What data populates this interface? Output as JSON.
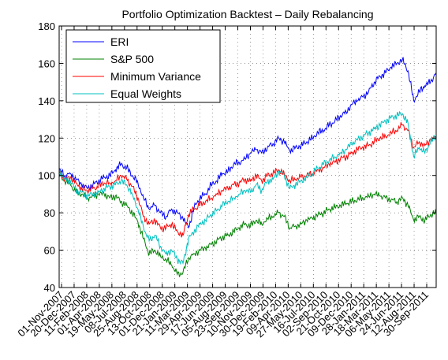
{
  "chart_data": {
    "type": "line",
    "title": "Portfolio Optimization Backtest – Daily Rebalancing",
    "xlabel": "",
    "ylabel": "",
    "ylim": [
      40,
      180
    ],
    "yticks": [
      40,
      60,
      80,
      100,
      120,
      140,
      160,
      180
    ],
    "grid": true,
    "legend_position": "top-left",
    "x_tick_labels": [
      "01-Nov-2007",
      "20-Dec-2007",
      "11-Feb-2008",
      "01-Apr-2008",
      "19-May-2008",
      "08-Jul-2008",
      "25-Aug-2008",
      "13-Oct-2008",
      "01-Dec-2008",
      "21-Jan-2009",
      "11-Mar-2009",
      "29-Apr-2009",
      "17-Jun-2009",
      "05-Aug-2009",
      "23-Sep-2009",
      "10-Nov-2009",
      "30-Dec-2009",
      "19-Feb-2010",
      "09-Apr-2010",
      "27-May-2010",
      "16-Jul-2010",
      "02-Sep-2010",
      "21-Oct-2010",
      "09-Dec-2010",
      "28-Jan-2011",
      "18-Mar-2011",
      "06-May-2011",
      "24-Jun-2011",
      "12-Aug-2011",
      "30-Sep-2011"
    ],
    "series": [
      {
        "name": "ERI",
        "color": "#0000ff",
        "values": [
          103,
          100,
          101,
          98,
          95,
          93,
          95,
          97,
          99,
          100,
          103,
          106,
          104,
          100,
          96,
          88,
          82,
          84,
          80,
          78,
          82,
          80,
          77,
          72,
          83,
          88,
          90,
          95,
          97,
          101,
          102,
          106,
          107,
          109,
          112,
          114,
          112,
          115,
          117,
          120,
          118,
          113,
          115,
          116,
          118,
          120,
          123,
          124,
          127,
          129,
          132,
          134,
          138,
          140,
          142,
          145,
          150,
          153,
          155,
          158,
          160,
          162,
          156,
          140,
          145,
          148,
          150,
          155
        ]
      },
      {
        "name": "S&P 500",
        "color": "#008000",
        "values": [
          101,
          97,
          95,
          91,
          90,
          88,
          89,
          90,
          90,
          88,
          89,
          86,
          84,
          80,
          75,
          66,
          58,
          60,
          57,
          55,
          52,
          47,
          48,
          56,
          58,
          60,
          61,
          63,
          65,
          67,
          68,
          70,
          72,
          74,
          73,
          76,
          74,
          77,
          78,
          80,
          78,
          72,
          73,
          74,
          76,
          77,
          79,
          80,
          82,
          83,
          84,
          85,
          86,
          87,
          88,
          89,
          90,
          89,
          88,
          87,
          86,
          88,
          84,
          76,
          78,
          76,
          79,
          80
        ]
      },
      {
        "name": "Minimum Variance",
        "color": "#ff0000",
        "values": [
          102,
          98,
          99,
          96,
          93,
          92,
          93,
          94,
          96,
          96,
          97,
          100,
          98,
          94,
          88,
          78,
          74,
          76,
          72,
          72,
          74,
          70,
          68,
          79,
          82,
          84,
          86,
          88,
          90,
          92,
          93,
          95,
          96,
          98,
          97,
          100,
          97,
          100,
          101,
          103,
          101,
          97,
          98,
          99,
          100,
          101,
          103,
          104,
          106,
          107,
          109,
          110,
          112,
          114,
          115,
          116,
          118,
          120,
          121,
          123,
          124,
          127,
          124,
          115,
          118,
          116,
          119,
          120
        ]
      },
      {
        "name": "Equal Weights",
        "color": "#00c0c0",
        "values": [
          103,
          98,
          97,
          92,
          91,
          89,
          90,
          91,
          93,
          94,
          95,
          97,
          95,
          90,
          82,
          72,
          65,
          68,
          62,
          58,
          60,
          55,
          53,
          66,
          70,
          74,
          76,
          79,
          81,
          84,
          86,
          88,
          90,
          92,
          91,
          95,
          92,
          97,
          98,
          102,
          100,
          93,
          95,
          97,
          99,
          101,
          104,
          106,
          108,
          110,
          112,
          114,
          117,
          119,
          121,
          123,
          125,
          127,
          129,
          131,
          132,
          133,
          128,
          110,
          115,
          112,
          118,
          121
        ]
      }
    ]
  }
}
